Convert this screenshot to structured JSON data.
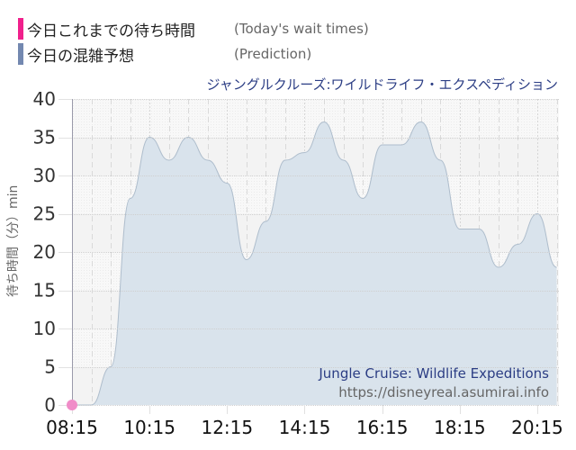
{
  "legend": {
    "items": [
      {
        "label_jp": "今日これまでの待ち時間",
        "label_en": "(Today's wait times)",
        "color": "#f0208c"
      },
      {
        "label_jp": "今日の混雑予想",
        "label_en": "(Prediction)",
        "color": "#7388b0"
      }
    ]
  },
  "attraction": {
    "name_jp": "ジャングルクルーズ:ワイルドライフ・エクスペディション",
    "name_en": "Jungle Cruise: Wildlife Expeditions",
    "url": "https://disneyreal.asumirai.info"
  },
  "axis": {
    "ylabel": "待ち時間（分）min"
  },
  "colors": {
    "fill": "#d9e3ec",
    "line": "#aebdcc",
    "today_marker": "#f08cc8",
    "band_a": "#f3f3f3",
    "band_b": "#f8f8f8",
    "axis": "#9a9aaa"
  },
  "chart_data": {
    "type": "area",
    "title": "ジャングルクルーズ:ワイルドライフ・エクスペディション",
    "xlabel": "",
    "ylabel": "待ち時間（分）min",
    "ylim": [
      0,
      40
    ],
    "yticks": [
      0,
      5,
      10,
      15,
      20,
      25,
      30,
      35,
      40
    ],
    "xticks": [
      "08:15",
      "10:15",
      "12:15",
      "14:15",
      "16:15",
      "18:15",
      "20:15"
    ],
    "grid": true,
    "legend_position": "top-left",
    "x": [
      "08:15",
      "08:45",
      "09:15",
      "09:45",
      "10:15",
      "10:45",
      "11:15",
      "11:45",
      "12:15",
      "12:45",
      "13:15",
      "13:45",
      "14:15",
      "14:45",
      "15:15",
      "15:45",
      "16:15",
      "16:45",
      "17:15",
      "17:45",
      "18:15",
      "18:45",
      "19:15",
      "19:45",
      "20:15",
      "20:45"
    ],
    "series": [
      {
        "name": "今日の混雑予想 (Prediction)",
        "values": [
          0,
          0,
          5,
          27,
          35,
          32,
          35,
          32,
          29,
          19,
          24,
          32,
          33,
          37,
          32,
          27,
          34,
          34,
          37,
          32,
          23,
          23,
          18,
          21,
          25,
          18
        ]
      },
      {
        "name": "今日これまでの待ち時間 (Today's wait times)",
        "x": [
          "08:15"
        ],
        "values": [
          0
        ]
      }
    ]
  }
}
